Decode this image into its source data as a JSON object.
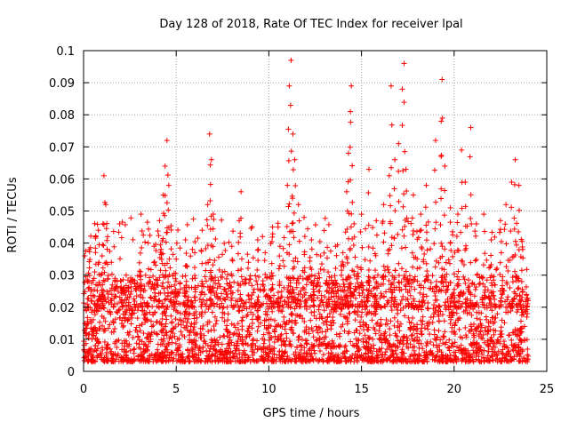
{
  "chart_data": {
    "type": "scatter",
    "title": "Day 128 of 2018, Rate Of TEC Index for receiver lpal",
    "xlabel": "GPS time / hours",
    "ylabel": "ROTI / TECUs",
    "xlim": [
      0,
      25
    ],
    "ylim": [
      0,
      0.1
    ],
    "xticks": [
      0,
      5,
      10,
      15,
      20,
      25
    ],
    "xtick_labels": [
      "0",
      "5",
      "10",
      "15",
      "20",
      "25"
    ],
    "yticks": [
      0,
      0.01,
      0.02,
      0.03,
      0.04,
      0.05,
      0.06,
      0.07,
      0.08,
      0.09,
      0.1
    ],
    "ytick_labels": [
      "0",
      "0.01",
      "0.02",
      "0.03",
      "0.04",
      "0.05",
      "0.06",
      "0.07",
      "0.08",
      "0.09",
      "0.1"
    ],
    "grid": true,
    "marker": "+",
    "marker_color": "#ff0000",
    "series": [
      {
        "name": "ROTI",
        "points": [
          [
            0.1,
            0.012
          ],
          [
            0.2,
            0.021
          ],
          [
            0.3,
            0.038
          ],
          [
            0.4,
            0.025
          ],
          [
            0.6,
            0.031
          ],
          [
            0.8,
            0.044
          ],
          [
            1.0,
            0.036
          ],
          [
            1.1,
            0.061
          ],
          [
            1.2,
            0.052
          ],
          [
            1.3,
            0.042
          ],
          [
            1.5,
            0.034
          ],
          [
            1.7,
            0.029
          ],
          [
            2.0,
            0.026
          ],
          [
            2.3,
            0.03
          ],
          [
            2.6,
            0.019
          ],
          [
            3.1,
            0.049
          ],
          [
            3.4,
            0.018
          ],
          [
            3.8,
            0.039
          ],
          [
            4.1,
            0.047
          ],
          [
            4.3,
            0.055
          ],
          [
            4.4,
            0.064
          ],
          [
            4.5,
            0.072
          ],
          [
            4.6,
            0.058
          ],
          [
            5.0,
            0.035
          ],
          [
            5.5,
            0.041
          ],
          [
            6.0,
            0.037
          ],
          [
            6.4,
            0.044
          ],
          [
            6.7,
            0.052
          ],
          [
            6.8,
            0.074
          ],
          [
            6.9,
            0.066
          ],
          [
            7.0,
            0.049
          ],
          [
            7.5,
            0.031
          ],
          [
            8.0,
            0.039
          ],
          [
            8.4,
            0.047
          ],
          [
            8.5,
            0.056
          ],
          [
            8.9,
            0.034
          ],
          [
            9.4,
            0.041
          ],
          [
            9.8,
            0.037
          ],
          [
            10.2,
            0.045
          ],
          [
            10.6,
            0.039
          ],
          [
            11.0,
            0.058
          ],
          [
            11.1,
            0.089
          ],
          [
            11.2,
            0.097
          ],
          [
            11.3,
            0.074
          ],
          [
            11.4,
            0.066
          ],
          [
            11.6,
            0.052
          ],
          [
            11.9,
            0.048
          ],
          [
            12.3,
            0.041
          ],
          [
            12.8,
            0.036
          ],
          [
            13.2,
            0.031
          ],
          [
            13.6,
            0.039
          ],
          [
            14.0,
            0.037
          ],
          [
            14.2,
            0.056
          ],
          [
            14.3,
            0.068
          ],
          [
            14.4,
            0.081
          ],
          [
            14.45,
            0.089
          ],
          [
            14.6,
            0.046
          ],
          [
            15.0,
            0.049
          ],
          [
            15.4,
            0.063
          ],
          [
            15.8,
            0.047
          ],
          [
            16.2,
            0.052
          ],
          [
            16.5,
            0.061
          ],
          [
            16.6,
            0.089
          ],
          [
            16.8,
            0.066
          ],
          [
            17.0,
            0.071
          ],
          [
            17.2,
            0.088
          ],
          [
            17.3,
            0.096
          ],
          [
            17.4,
            0.063
          ],
          [
            17.8,
            0.055
          ],
          [
            18.2,
            0.049
          ],
          [
            18.5,
            0.058
          ],
          [
            19.0,
            0.072
          ],
          [
            19.3,
            0.078
          ],
          [
            19.35,
            0.091
          ],
          [
            19.5,
            0.064
          ],
          [
            19.8,
            0.051
          ],
          [
            20.2,
            0.049
          ],
          [
            20.4,
            0.069
          ],
          [
            20.6,
            0.059
          ],
          [
            20.9,
            0.076
          ],
          [
            21.2,
            0.046
          ],
          [
            21.6,
            0.049
          ],
          [
            22.0,
            0.041
          ],
          [
            22.5,
            0.047
          ],
          [
            22.8,
            0.052
          ],
          [
            23.1,
            0.059
          ],
          [
            23.3,
            0.066
          ],
          [
            23.5,
            0.058
          ],
          [
            23.7,
            0.038
          ],
          [
            23.9,
            0.024
          ]
        ]
      }
    ],
    "dense_band": {
      "x": [
        0,
        24
      ],
      "y": [
        0.003,
        0.03
      ]
    }
  }
}
